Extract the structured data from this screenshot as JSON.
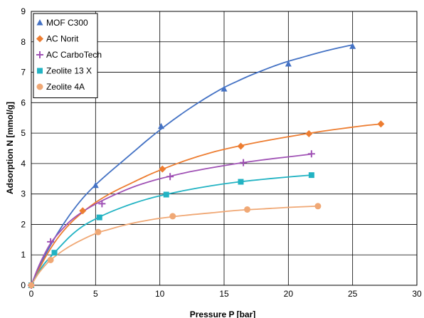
{
  "chart_data": {
    "type": "scatter",
    "xlabel": "Pressure P [bar]",
    "ylabel": "Adsorption N [mmol/g]",
    "xlim": [
      0,
      30
    ],
    "ylim": [
      0,
      9
    ],
    "x_ticks": [
      "0",
      "5",
      "10",
      "15",
      "20",
      "25",
      "30"
    ],
    "y_ticks": [
      "0",
      "1",
      "2",
      "3",
      "4",
      "5",
      "6",
      "7",
      "8",
      "9"
    ],
    "grid": true,
    "legend_position": "top-left",
    "series": [
      {
        "name": "MOF C300",
        "color": "#4472c4",
        "marker": "triangle",
        "points": [
          [
            0,
            0
          ],
          [
            5,
            3.28
          ],
          [
            10.1,
            5.22
          ],
          [
            15,
            6.45
          ],
          [
            20,
            7.27
          ],
          [
            25,
            7.85
          ]
        ],
        "curve": [
          [
            0,
            0
          ],
          [
            1,
            0.92
          ],
          [
            2,
            1.68
          ],
          [
            3,
            2.32
          ],
          [
            4,
            2.86
          ],
          [
            5,
            3.3
          ],
          [
            6,
            3.68
          ],
          [
            7,
            4.04
          ],
          [
            8,
            4.4
          ],
          [
            9,
            4.76
          ],
          [
            10,
            5.1
          ],
          [
            11,
            5.42
          ],
          [
            12,
            5.72
          ],
          [
            13,
            6.0
          ],
          [
            14,
            6.26
          ],
          [
            15,
            6.5
          ],
          [
            16,
            6.7
          ],
          [
            17,
            6.89
          ],
          [
            18,
            7.06
          ],
          [
            19,
            7.22
          ],
          [
            20,
            7.36
          ],
          [
            21,
            7.48
          ],
          [
            22,
            7.6
          ],
          [
            23,
            7.71
          ],
          [
            24,
            7.81
          ],
          [
            25,
            7.9
          ]
        ]
      },
      {
        "name": "AC Norit",
        "color": "#ed7d31",
        "marker": "diamond",
        "points": [
          [
            0,
            0
          ],
          [
            4,
            2.45
          ],
          [
            10.2,
            3.82
          ],
          [
            16.3,
            4.57
          ],
          [
            21.6,
            4.98
          ],
          [
            27.2,
            5.3
          ]
        ],
        "curve": [
          [
            0,
            0
          ],
          [
            1,
            0.85
          ],
          [
            2,
            1.52
          ],
          [
            3,
            2.02
          ],
          [
            4,
            2.4
          ],
          [
            5,
            2.72
          ],
          [
            6,
            2.98
          ],
          [
            7,
            3.2
          ],
          [
            8,
            3.4
          ],
          [
            9,
            3.6
          ],
          [
            10,
            3.78
          ],
          [
            12,
            4.1
          ],
          [
            14,
            4.36
          ],
          [
            16,
            4.56
          ],
          [
            18,
            4.73
          ],
          [
            20,
            4.88
          ],
          [
            22,
            5.02
          ],
          [
            24,
            5.14
          ],
          [
            26,
            5.25
          ],
          [
            27.2,
            5.3
          ]
        ]
      },
      {
        "name": "AC CarboTech",
        "color": "#a052b5",
        "marker": "plus",
        "points": [
          [
            0,
            0
          ],
          [
            1.5,
            1.43
          ],
          [
            5.5,
            2.68
          ],
          [
            10.8,
            3.57
          ],
          [
            16.5,
            4.03
          ],
          [
            21.8,
            4.32
          ]
        ],
        "curve": [
          [
            0,
            0
          ],
          [
            0.5,
            0.55
          ],
          [
            1,
            1.0
          ],
          [
            1.5,
            1.38
          ],
          [
            2,
            1.65
          ],
          [
            3,
            2.1
          ],
          [
            4,
            2.42
          ],
          [
            5,
            2.67
          ],
          [
            6,
            2.88
          ],
          [
            7,
            3.07
          ],
          [
            8,
            3.24
          ],
          [
            9,
            3.38
          ],
          [
            10,
            3.5
          ],
          [
            12,
            3.7
          ],
          [
            14,
            3.86
          ],
          [
            16,
            4.0
          ],
          [
            18,
            4.12
          ],
          [
            20,
            4.22
          ],
          [
            21.8,
            4.31
          ]
        ]
      },
      {
        "name": "Zeolite 13 X",
        "color": "#22b3c3",
        "marker": "square",
        "points": [
          [
            0,
            0
          ],
          [
            1.8,
            1.07
          ],
          [
            5.3,
            2.23
          ],
          [
            10.5,
            2.98
          ],
          [
            16.3,
            3.4
          ],
          [
            21.8,
            3.62
          ]
        ],
        "curve": [
          [
            0,
            0
          ],
          [
            0.5,
            0.38
          ],
          [
            1,
            0.7
          ],
          [
            1.8,
            1.07
          ],
          [
            3,
            1.6
          ],
          [
            4,
            1.94
          ],
          [
            5,
            2.18
          ],
          [
            6,
            2.38
          ],
          [
            7,
            2.55
          ],
          [
            8,
            2.7
          ],
          [
            9,
            2.83
          ],
          [
            10,
            2.94
          ],
          [
            12,
            3.12
          ],
          [
            14,
            3.27
          ],
          [
            16,
            3.39
          ],
          [
            18,
            3.48
          ],
          [
            20,
            3.56
          ],
          [
            21.8,
            3.62
          ]
        ]
      },
      {
        "name": "Zeolite 4A",
        "color": "#f0a875",
        "marker": "circle",
        "points": [
          [
            0,
            0
          ],
          [
            1.5,
            0.83
          ],
          [
            5.2,
            1.75
          ],
          [
            11,
            2.27
          ],
          [
            16.8,
            2.49
          ],
          [
            22.3,
            2.6
          ]
        ],
        "curve": [
          [
            0,
            0
          ],
          [
            0.5,
            0.35
          ],
          [
            1,
            0.62
          ],
          [
            1.5,
            0.83
          ],
          [
            2.5,
            1.15
          ],
          [
            3.5,
            1.4
          ],
          [
            5,
            1.7
          ],
          [
            6,
            1.83
          ],
          [
            7,
            1.95
          ],
          [
            8,
            2.05
          ],
          [
            9,
            2.13
          ],
          [
            10,
            2.2
          ],
          [
            12,
            2.3
          ],
          [
            14,
            2.38
          ],
          [
            16,
            2.46
          ],
          [
            18,
            2.51
          ],
          [
            20,
            2.56
          ],
          [
            22.3,
            2.6
          ]
        ]
      }
    ]
  }
}
